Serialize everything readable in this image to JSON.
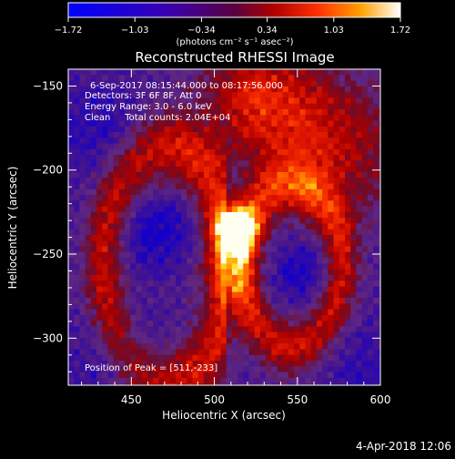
{
  "chart_data": {
    "type": "heatmap",
    "title": "Reconstructed RHESSI Image",
    "xlabel": "Heliocentric X (arcsec)",
    "ylabel": "Heliocentric Y (arcsec)",
    "xlim": [
      412,
      600
    ],
    "ylim": [
      -328,
      -140
    ],
    "x_ticks": [
      450,
      500,
      550,
      600
    ],
    "x_tick_labels": [
      "450",
      "500",
      "550",
      "600"
    ],
    "y_ticks": [
      -150,
      -200,
      -250,
      -300
    ],
    "y_tick_labels": [
      "−150",
      "−200",
      "−250",
      "−300"
    ],
    "colorbar": {
      "range": [
        -1.72,
        1.72
      ],
      "ticks": [
        -1.72,
        -1.03,
        -0.34,
        0.34,
        1.03,
        1.72
      ],
      "tick_labels": [
        "−1.72",
        "−1.03",
        "−0.34",
        "0.34",
        "1.03",
        "1.72"
      ],
      "units_label": "(photons cm⁻² s⁻¹ asec⁻²)"
    },
    "annotations": {
      "time_range": "6-Sep-2017 08:15:44.000 to 08:17:56.000",
      "detectors": "Detectors: 3F 6F 8F, Att 0",
      "energy": "Energy Range: 3.0 - 6.0 keV",
      "clean": "Clean     Total counts: 2.04E+04",
      "peak": "Position of Peak = [511,-233]"
    },
    "peak": {
      "x": 511,
      "y": -233,
      "value": 1.72
    },
    "grid": false
  },
  "footer": {
    "date": "4-Apr-2018 12:06"
  }
}
